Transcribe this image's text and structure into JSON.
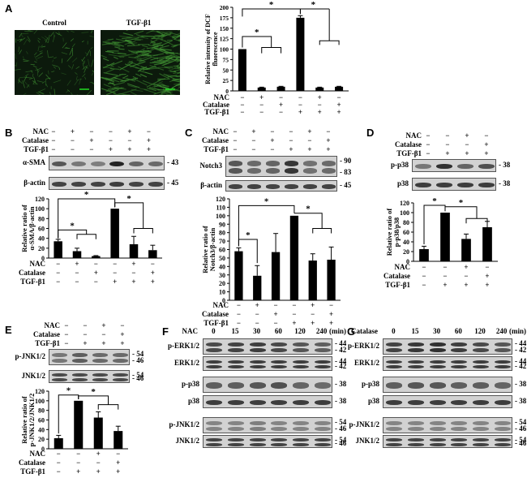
{
  "panels": {
    "A": {
      "letter": "A",
      "image_labels": [
        "Control",
        "TGF-β1"
      ],
      "chart_data": {
        "type": "bar",
        "ylabel": "Relative intensity of DCF fluorescence",
        "ylim": [
          0,
          200
        ],
        "yticks": [
          0,
          25,
          50,
          75,
          100,
          125,
          150,
          175,
          200
        ],
        "values": [
          100,
          8,
          10,
          175,
          8,
          10
        ],
        "errors": [
          0,
          1,
          1,
          5,
          1,
          1
        ],
        "treatment_rows": [
          {
            "label": "NAC",
            "signs": [
              "−",
              "+",
              "−",
              "−",
              "+",
              "−"
            ]
          },
          {
            "label": "Catalase",
            "signs": [
              "−",
              "−",
              "+",
              "−",
              "−",
              "+"
            ]
          },
          {
            "label": "TGF-β1",
            "signs": [
              "−",
              "−",
              "−",
              "+",
              "+",
              "+"
            ]
          }
        ],
        "significance": "*"
      }
    },
    "B": {
      "letter": "B",
      "treatment_rows": [
        {
          "label": "NAC",
          "signs": [
            "−",
            "+",
            "−",
            "−",
            "+",
            "−"
          ]
        },
        {
          "label": "Catalase",
          "signs": [
            "−",
            "−",
            "+",
            "−",
            "−",
            "+"
          ]
        },
        {
          "label": "TGF-β1",
          "signs": [
            "−",
            "−",
            "−",
            "+",
            "+",
            "+"
          ]
        }
      ],
      "blots": [
        {
          "label": "α-SMA",
          "mw": [
            "43"
          ]
        },
        {
          "label": "β-actin",
          "mw": [
            "45"
          ]
        }
      ],
      "chart_data": {
        "type": "bar",
        "ylabel": "Relative ratio of α-SMA/β-actin",
        "ylim": [
          0,
          120
        ],
        "yticks": [
          0,
          20,
          40,
          60,
          80,
          100,
          120
        ],
        "values": [
          34,
          14,
          4,
          100,
          28,
          16
        ],
        "errors": [
          4,
          6,
          1,
          0,
          16,
          10
        ],
        "significance": "*"
      }
    },
    "C": {
      "letter": "C",
      "treatment_rows": [
        {
          "label": "NAC",
          "signs": [
            "−",
            "+",
            "−",
            "−",
            "+",
            "−"
          ]
        },
        {
          "label": "Catalase",
          "signs": [
            "−",
            "−",
            "+",
            "−",
            "−",
            "+"
          ]
        },
        {
          "label": "TGF-β1",
          "signs": [
            "−",
            "−",
            "−",
            "+",
            "+",
            "+"
          ]
        }
      ],
      "blots": [
        {
          "label": "Notch3",
          "mw": [
            "90",
            "83"
          ]
        },
        {
          "label": "β-actin",
          "mw": [
            "45"
          ]
        }
      ],
      "chart_data": {
        "type": "bar",
        "ylabel": "Relative ratio of Notch3/β-actin",
        "ylim": [
          0,
          120
        ],
        "yticks": [
          0,
          10,
          20,
          30,
          40,
          50,
          60,
          70,
          80,
          90,
          100,
          110,
          120
        ],
        "values": [
          58,
          29,
          57,
          100,
          47,
          48
        ],
        "errors": [
          4,
          12,
          22,
          0,
          8,
          15
        ],
        "significance": "*"
      }
    },
    "D": {
      "letter": "D",
      "treatment_rows": [
        {
          "label": "NAC",
          "signs": [
            "−",
            "−",
            "+",
            "−"
          ]
        },
        {
          "label": "Catalase",
          "signs": [
            "−",
            "−",
            "−",
            "+"
          ]
        },
        {
          "label": "TGF-β1",
          "signs": [
            "−",
            "+",
            "+",
            "+"
          ]
        }
      ],
      "blots": [
        {
          "label": "p-p38",
          "mw": [
            "38"
          ]
        },
        {
          "label": "p38",
          "mw": [
            "38"
          ]
        }
      ],
      "chart_data": {
        "type": "bar",
        "ylabel": "Relative ratio of p-p38/p38",
        "ylim": [
          0,
          120
        ],
        "yticks": [
          0,
          20,
          40,
          60,
          80,
          100,
          120
        ],
        "values": [
          25,
          100,
          46,
          70
        ],
        "errors": [
          6,
          0,
          10,
          12
        ],
        "significance": "*"
      }
    },
    "E": {
      "letter": "E",
      "treatment_rows": [
        {
          "label": "NAC",
          "signs": [
            "−",
            "−",
            "+",
            "−"
          ]
        },
        {
          "label": "Catalase",
          "signs": [
            "−",
            "−",
            "−",
            "+"
          ]
        },
        {
          "label": "TGF-β1",
          "signs": [
            "−",
            "+",
            "+",
            "+"
          ]
        }
      ],
      "blots": [
        {
          "label": "p-JNK1/2",
          "mw": [
            "54",
            "46"
          ]
        },
        {
          "label": "JNK1/2",
          "mw": [
            "54",
            "46"
          ]
        }
      ],
      "chart_data": {
        "type": "bar",
        "ylabel": "Relative ratio of p-JNK1/2/JNK1/2",
        "ylim": [
          0,
          120
        ],
        "yticks": [
          0,
          20,
          40,
          60,
          80,
          100,
          120
        ],
        "values": [
          22,
          100,
          65,
          37
        ],
        "errors": [
          6,
          0,
          12,
          10
        ],
        "significance": "*"
      }
    },
    "F": {
      "letter": "F",
      "treatment": "NAC",
      "timepoints": [
        "0",
        "15",
        "30",
        "60",
        "120",
        "240"
      ],
      "unit": "(min)",
      "blots": [
        {
          "label": "p-ERK1/2",
          "mw": [
            "44",
            "42"
          ]
        },
        {
          "label": "ERK1/2",
          "mw": [
            "44",
            "42"
          ]
        },
        {
          "label": "p-p38",
          "mw": [
            "38"
          ]
        },
        {
          "label": "p38",
          "mw": [
            "38"
          ]
        },
        {
          "label": "p-JNK1/2",
          "mw": [
            "54",
            "46"
          ]
        },
        {
          "label": "JNK1/2",
          "mw": [
            "54",
            "46"
          ]
        }
      ]
    },
    "G": {
      "letter": "G",
      "treatment": "Catalase",
      "timepoints": [
        "0",
        "15",
        "30",
        "60",
        "120",
        "240"
      ],
      "unit": "(min)",
      "blots": [
        {
          "label": "p-ERK1/2",
          "mw": [
            "44",
            "42"
          ]
        },
        {
          "label": "ERK1/2",
          "mw": [
            "44",
            "42"
          ]
        },
        {
          "label": "p-p38",
          "mw": [
            "38"
          ]
        },
        {
          "label": "p38",
          "mw": [
            "38"
          ]
        },
        {
          "label": "p-JNK1/2",
          "mw": [
            "54",
            "46"
          ]
        },
        {
          "label": "JNK1/2",
          "mw": [
            "54",
            "46"
          ]
        }
      ]
    }
  },
  "colors": {
    "bar": "#000000",
    "micrograph_bg": "#0c1a0c",
    "micrograph_fiber": "#3f8f32",
    "blot_bg": "#d2d2d2",
    "band": "#1a1a1a",
    "scale_bar": "#22dd22"
  }
}
